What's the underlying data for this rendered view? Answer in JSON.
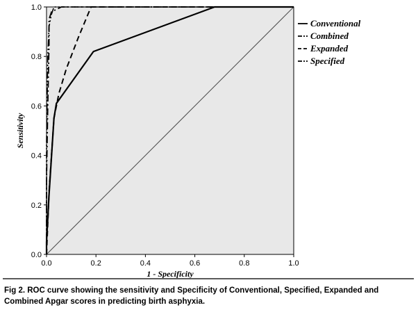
{
  "chart_data": {
    "type": "line",
    "title": "",
    "xlabel": "1 - Specificity",
    "ylabel": "Sensitivity",
    "xlim": [
      0,
      1
    ],
    "ylim": [
      0,
      1
    ],
    "xticks": [
      "0.0",
      "0.2",
      "0.4",
      "0.6",
      "0.8",
      "1.0"
    ],
    "yticks": [
      "0.0",
      "0.2",
      "0.4",
      "0.6",
      "0.8",
      "1.0"
    ],
    "grid": false,
    "background": "#e8e8e8",
    "legend_position": "right",
    "series": [
      {
        "name": "Conventional",
        "style": "solid",
        "x": [
          0.0,
          0.0,
          0.01,
          0.03,
          0.04,
          0.19,
          0.68,
          1.0
        ],
        "y": [
          0.0,
          0.05,
          0.24,
          0.55,
          0.61,
          0.82,
          1.0,
          1.0
        ]
      },
      {
        "name": "Combined",
        "style": "dashdot",
        "x": [
          0.0,
          0.0,
          0.005,
          0.01,
          0.01,
          0.02,
          0.04,
          0.06,
          1.0
        ],
        "y": [
          0.0,
          0.3,
          0.6,
          0.85,
          0.95,
          0.98,
          0.99,
          1.0,
          1.0
        ]
      },
      {
        "name": "Expanded",
        "style": "dashed",
        "x": [
          0.0,
          0.01,
          0.03,
          0.05,
          0.08,
          0.13,
          0.18,
          1.0
        ],
        "y": [
          0.0,
          0.25,
          0.55,
          0.65,
          0.75,
          0.88,
          1.0,
          1.0
        ]
      },
      {
        "name": "Specified",
        "style": "dashdotdot",
        "x": [
          0.0,
          0.0,
          0.005,
          0.01,
          0.02,
          0.03,
          1.0
        ],
        "y": [
          0.0,
          0.45,
          0.8,
          0.92,
          0.97,
          1.0,
          1.0
        ]
      }
    ],
    "reference_line": {
      "x": [
        0,
        1
      ],
      "y": [
        0,
        1
      ]
    }
  },
  "caption": "Fig 2. ROC curve showing the sensitivity and Specificity of Conventional, Specified, Expanded and Combined Apgar scores in predicting birth asphyxia."
}
